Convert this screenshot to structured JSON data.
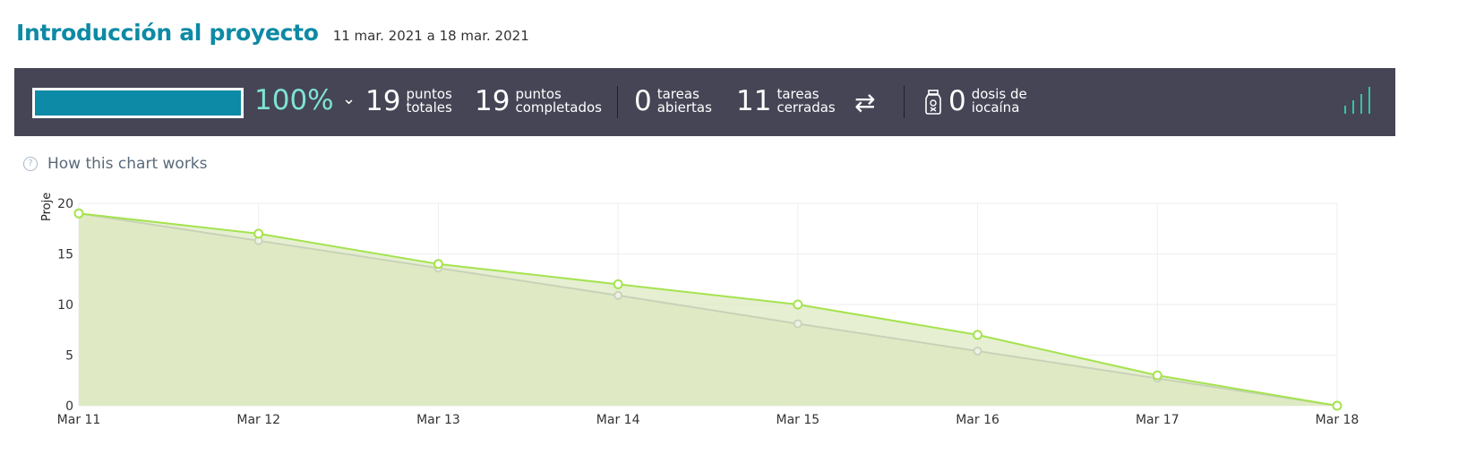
{
  "header": {
    "title": "Introducción al proyecto",
    "date_range": "11 mar. 2021 a 18 mar. 2021"
  },
  "stats": {
    "progress_percent": 100,
    "progress_label": "100%",
    "total_points": {
      "value": "19",
      "label1": "puntos",
      "label2": "totales"
    },
    "completed_points": {
      "value": "19",
      "label1": "puntos",
      "label2": "completados"
    },
    "open_tasks": {
      "value": "0",
      "label1": "tareas",
      "label2": "abiertas"
    },
    "closed_tasks": {
      "value": "11",
      "label1": "tareas",
      "label2": "cerradas"
    },
    "iocaine": {
      "value": "0",
      "label1": "dosis de",
      "label2": "iocaína"
    }
  },
  "help": {
    "label": "How this chart works"
  },
  "colors": {
    "accent": "#0d8aa5",
    "percent": "#7fe3d3",
    "bar_bg": "#454556",
    "real_line": "#a4e34e",
    "optimal_line": "#c8d2b8",
    "area_fill": "#dde9c2"
  },
  "chart_data": {
    "type": "line",
    "x": [
      "Mar 11",
      "Mar 12",
      "Mar 13",
      "Mar 14",
      "Mar 15",
      "Mar 16",
      "Mar 17",
      "Mar 18"
    ],
    "series": [
      {
        "values": [
          19,
          17,
          14,
          12,
          10,
          7,
          3,
          0
        ]
      },
      {
        "values": [
          19,
          16.3,
          13.6,
          10.9,
          8.1,
          5.4,
          2.7,
          0
        ]
      }
    ],
    "ylabel": "Proje",
    "ylim": [
      0,
      20
    ],
    "yticks": [
      "0",
      "5",
      "10",
      "15",
      "20"
    ],
    "grid": true
  }
}
